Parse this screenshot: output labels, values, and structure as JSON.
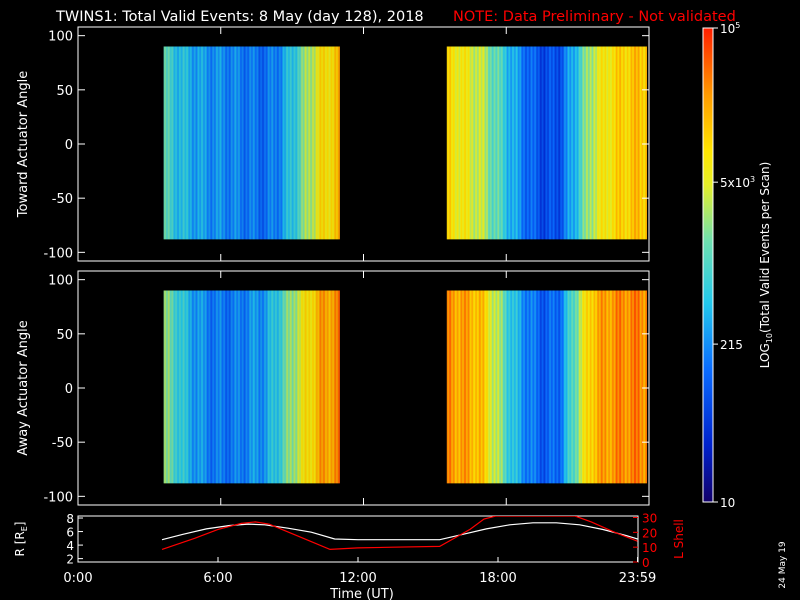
{
  "title": {
    "main": "TWINS1: Total Valid Events:  8 May (day 128), 2018",
    "note": "NOTE: Data Preliminary - Not validated"
  },
  "colors": {
    "background": "#000000",
    "foreground": "#ffffff",
    "note": "#ff0000",
    "r_line": "#ffffff",
    "lshell_line": "#ff0000"
  },
  "footer_date": "24 May 19",
  "chart_data": [
    {
      "type": "heatmap",
      "name": "toward",
      "ylabel": "Toward Actuator Angle",
      "ylim": [
        -108,
        108
      ],
      "yticks": [
        100,
        50,
        0,
        -50,
        -100
      ],
      "xlim": [
        0,
        24
      ],
      "angle_range": [
        -88,
        90
      ],
      "data_blocks": [
        [
          3.6,
          11.0
        ],
        [
          15.5,
          23.9
        ]
      ],
      "column_profile": [
        {
          "t": 3.6,
          "v": 0.52
        },
        {
          "t": 4.1,
          "v": 0.44
        },
        {
          "t": 4.6,
          "v": 0.4
        },
        {
          "t": 5.2,
          "v": 0.36
        },
        {
          "t": 5.8,
          "v": 0.34
        },
        {
          "t": 6.6,
          "v": 0.32
        },
        {
          "t": 7.3,
          "v": 0.3
        },
        {
          "t": 7.9,
          "v": 0.28
        },
        {
          "t": 8.5,
          "v": 0.34
        },
        {
          "t": 9.1,
          "v": 0.46
        },
        {
          "t": 9.7,
          "v": 0.62
        },
        {
          "t": 10.3,
          "v": 0.73
        },
        {
          "t": 11.0,
          "v": 0.78
        },
        {
          "t": 15.5,
          "v": 0.74
        },
        {
          "t": 16.2,
          "v": 0.7
        },
        {
          "t": 16.9,
          "v": 0.64
        },
        {
          "t": 17.6,
          "v": 0.52
        },
        {
          "t": 18.3,
          "v": 0.38
        },
        {
          "t": 19.0,
          "v": 0.26
        },
        {
          "t": 19.7,
          "v": 0.2
        },
        {
          "t": 20.3,
          "v": 0.24
        },
        {
          "t": 20.9,
          "v": 0.42
        },
        {
          "t": 21.6,
          "v": 0.64
        },
        {
          "t": 22.4,
          "v": 0.74
        },
        {
          "t": 23.2,
          "v": 0.78
        },
        {
          "t": 23.9,
          "v": 0.8
        }
      ]
    },
    {
      "type": "heatmap",
      "name": "away",
      "ylabel": "Away Actuator Angle",
      "ylim": [
        -108,
        108
      ],
      "yticks": [
        100,
        50,
        0,
        -50,
        -100
      ],
      "xlim": [
        0,
        24
      ],
      "angle_range": [
        -88,
        90
      ],
      "data_blocks": [
        [
          3.6,
          11.0
        ],
        [
          15.5,
          23.9
        ]
      ],
      "column_profile": [
        {
          "t": 3.6,
          "v": 0.58
        },
        {
          "t": 4.1,
          "v": 0.5
        },
        {
          "t": 4.6,
          "v": 0.4
        },
        {
          "t": 5.2,
          "v": 0.34
        },
        {
          "t": 5.8,
          "v": 0.3
        },
        {
          "t": 6.6,
          "v": 0.3
        },
        {
          "t": 7.3,
          "v": 0.34
        },
        {
          "t": 7.9,
          "v": 0.36
        },
        {
          "t": 8.5,
          "v": 0.48
        },
        {
          "t": 9.1,
          "v": 0.62
        },
        {
          "t": 9.7,
          "v": 0.74
        },
        {
          "t": 10.3,
          "v": 0.84
        },
        {
          "t": 11.0,
          "v": 0.86
        },
        {
          "t": 15.5,
          "v": 0.86
        },
        {
          "t": 16.2,
          "v": 0.84
        },
        {
          "t": 16.9,
          "v": 0.8
        },
        {
          "t": 17.6,
          "v": 0.62
        },
        {
          "t": 18.3,
          "v": 0.42
        },
        {
          "t": 19.0,
          "v": 0.3
        },
        {
          "t": 19.7,
          "v": 0.24
        },
        {
          "t": 20.3,
          "v": 0.3
        },
        {
          "t": 20.9,
          "v": 0.56
        },
        {
          "t": 21.6,
          "v": 0.8
        },
        {
          "t": 22.4,
          "v": 0.86
        },
        {
          "t": 23.2,
          "v": 0.88
        },
        {
          "t": 23.9,
          "v": 0.88
        }
      ]
    },
    {
      "type": "line",
      "name": "orbit",
      "xlabel": "Time (UT)",
      "xlim": [
        0,
        24
      ],
      "xticks": [
        {
          "t": 0,
          "label": "0:00"
        },
        {
          "t": 6,
          "label": "6:00"
        },
        {
          "t": 12,
          "label": "12:00"
        },
        {
          "t": 18,
          "label": "18:00"
        },
        {
          "t": 23.98,
          "label": "23:59"
        }
      ],
      "left_axis": {
        "label": "R [R",
        "label_sub": "E",
        "label_end": "]",
        "ylim": [
          1.5,
          8.3
        ],
        "yticks": [
          2,
          4,
          6,
          8
        ]
      },
      "right_axis": {
        "label": "L Shell",
        "ylim": [
          0,
          31
        ],
        "yticks": [
          0,
          10,
          20,
          30
        ]
      },
      "series": [
        {
          "name": "R",
          "axis": "left",
          "x": [
            3.6,
            4.5,
            5.5,
            6.5,
            7.3,
            8.0,
            9.0,
            10.0,
            11.0,
            12.0,
            13.0,
            14.0,
            15.5,
            16.5,
            17.5,
            18.5,
            19.5,
            20.5,
            21.5,
            22.5,
            23.5,
            23.98
          ],
          "y": [
            4.8,
            5.6,
            6.4,
            6.9,
            7.1,
            7.0,
            6.5,
            5.9,
            4.9,
            4.8,
            4.8,
            4.8,
            4.8,
            5.6,
            6.4,
            7.0,
            7.3,
            7.3,
            7.0,
            6.3,
            5.4,
            4.9
          ]
        },
        {
          "name": "L",
          "axis": "right",
          "x": [
            3.6,
            5.0,
            6.0,
            7.0,
            7.6,
            8.2,
            9.5,
            10.8,
            12.0,
            13.5,
            15.5,
            16.8,
            17.4,
            17.9,
            21.3,
            22.0,
            23.0,
            23.98
          ],
          "y": [
            8.5,
            16,
            22,
            26,
            27,
            25.5,
            17,
            8.5,
            9.5,
            10,
            10.5,
            22,
            29,
            31,
            31,
            27,
            20,
            14
          ]
        }
      ]
    }
  ],
  "colorbar": {
    "label": "LOG",
    "label_sub": "10",
    "label_rest": "(Total Valid Events per Scan)",
    "scale": "log",
    "range": [
      10,
      100000
    ],
    "ticks": [
      {
        "value": 100000,
        "text": "10",
        "sup": "5"
      },
      {
        "value": 5000,
        "text": "5x10",
        "sup": "3"
      },
      {
        "value": 215,
        "text": "215",
        "sup": ""
      },
      {
        "value": 10,
        "text": "10",
        "sup": ""
      }
    ]
  }
}
